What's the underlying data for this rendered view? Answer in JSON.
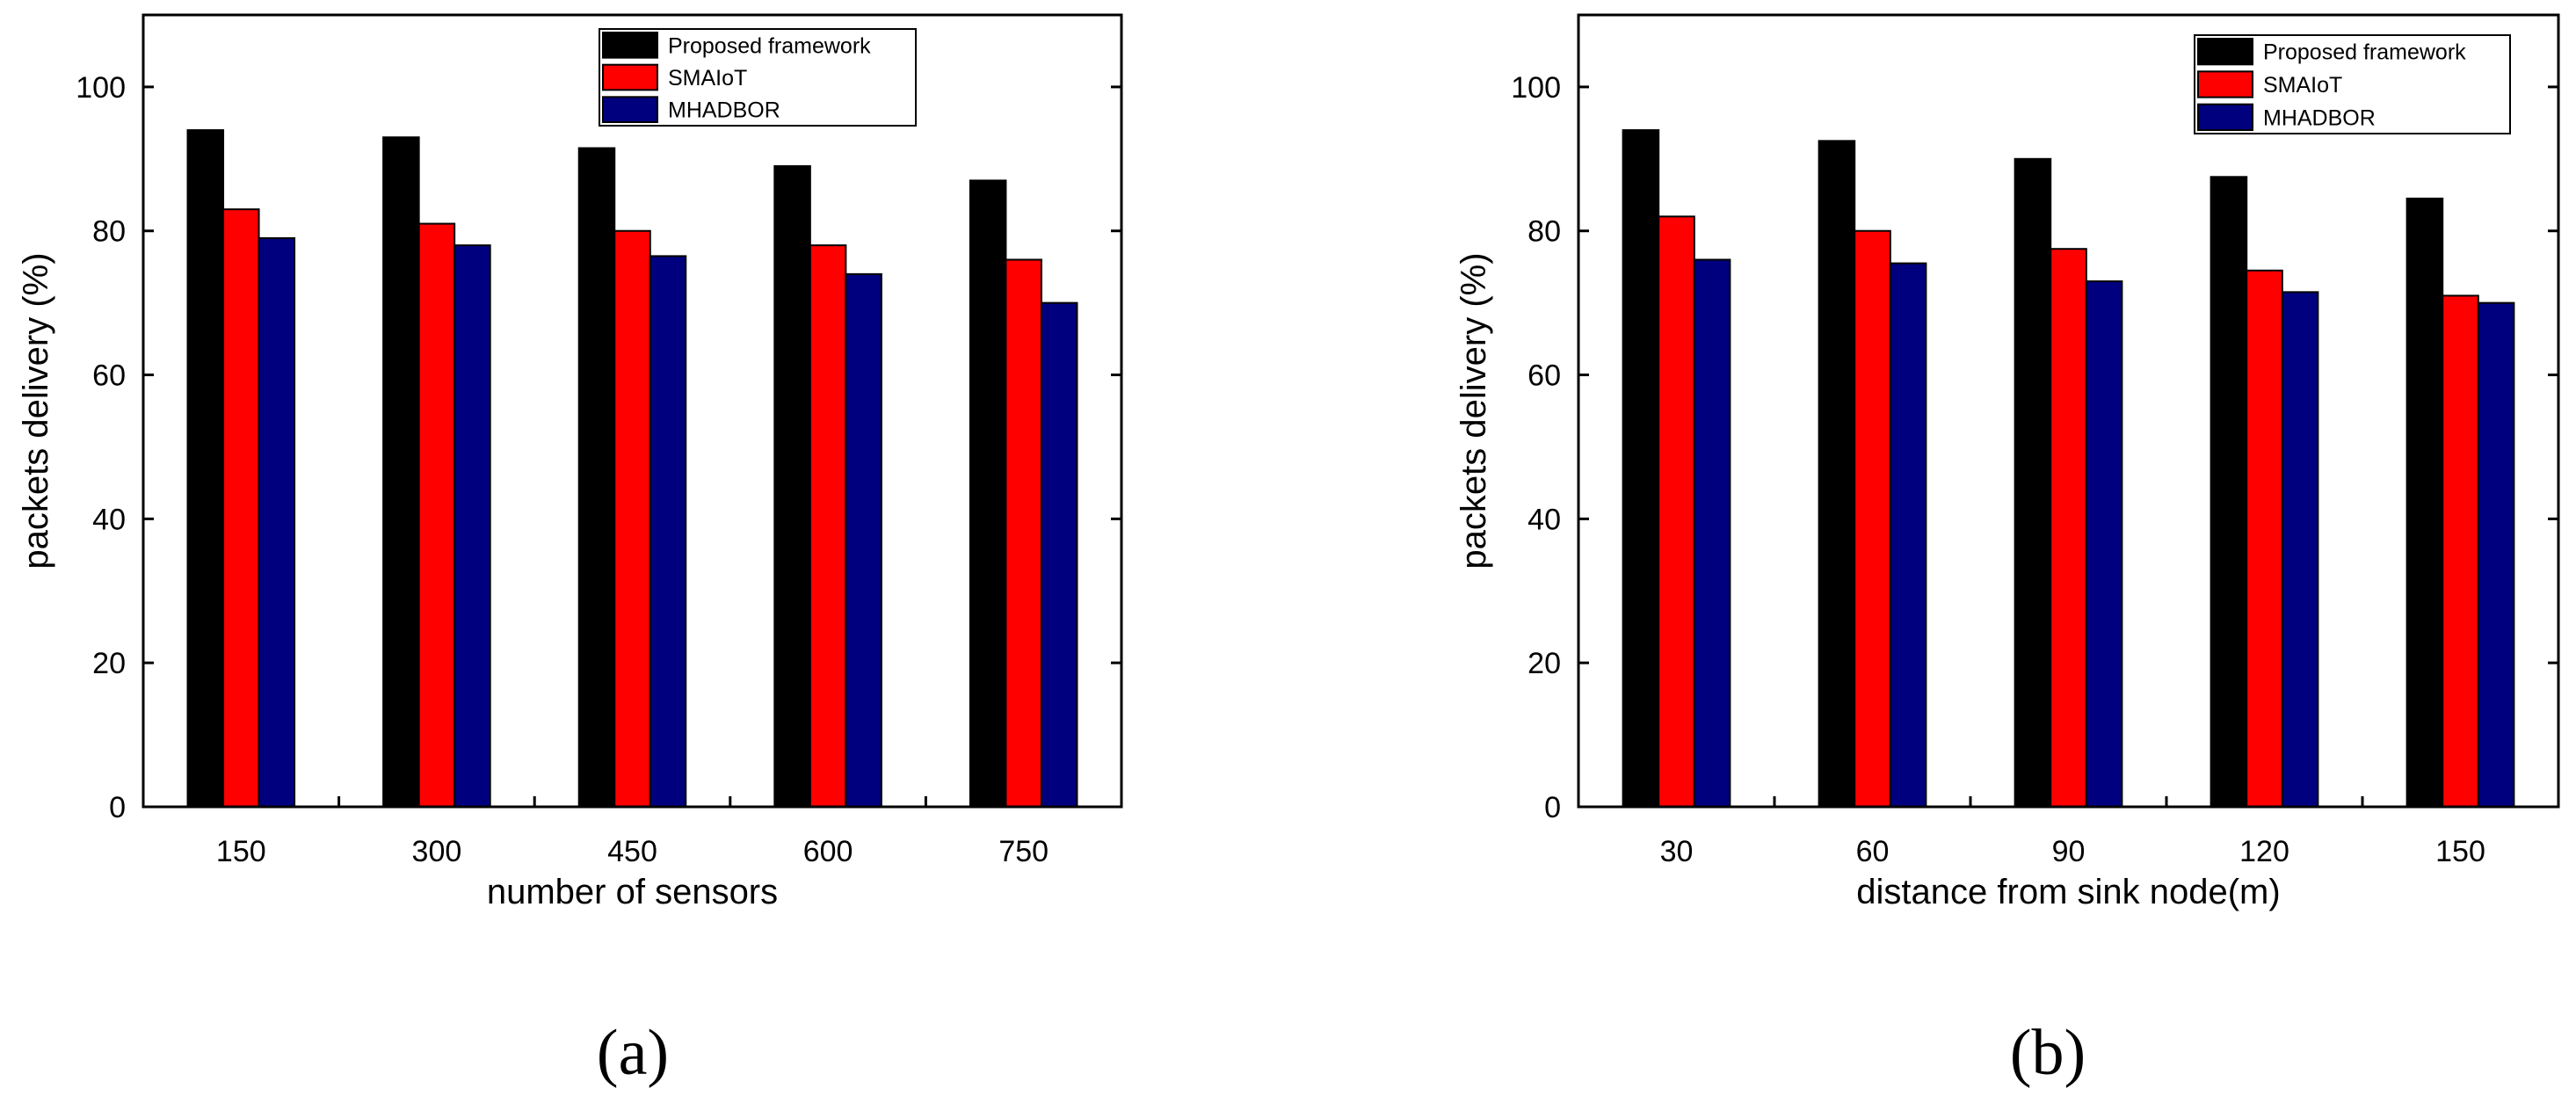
{
  "chart_data": [
    {
      "type": "bar",
      "panel_label": "(a)",
      "xlabel": "number of sensors",
      "ylabel": "packets delivery (%)",
      "categories": [
        "150",
        "300",
        "450",
        "600",
        "750"
      ],
      "ylim": [
        0,
        110
      ],
      "yticks": [
        0,
        20,
        40,
        60,
        80,
        100
      ],
      "series": [
        {
          "name": "Proposed framework",
          "color": "#000000",
          "values": [
            94,
            93,
            91.5,
            89,
            87
          ]
        },
        {
          "name": "SMAIoT",
          "color": "#ff0000",
          "values": [
            83,
            81,
            80,
            78,
            76
          ]
        },
        {
          "name": "MHADBOR",
          "color": "#00007f",
          "values": [
            79,
            78,
            76.5,
            74,
            70
          ]
        }
      ],
      "legend": "top-right"
    },
    {
      "type": "bar",
      "panel_label": "(b)",
      "xlabel": "distance from sink node(m)",
      "ylabel": "packets delivery (%)",
      "categories": [
        "30",
        "60",
        "90",
        "120",
        "150"
      ],
      "ylim": [
        0,
        110
      ],
      "yticks": [
        0,
        20,
        40,
        60,
        80,
        100
      ],
      "series": [
        {
          "name": "Proposed framework",
          "color": "#000000",
          "values": [
            94,
            92.5,
            90,
            87.5,
            84.5
          ]
        },
        {
          "name": "SMAIoT",
          "color": "#ff0000",
          "values": [
            82,
            80,
            77.5,
            74.5,
            71
          ]
        },
        {
          "name": "MHADBOR",
          "color": "#00007f",
          "values": [
            76,
            75.5,
            73,
            71.5,
            70
          ]
        }
      ],
      "legend": "top-right"
    }
  ]
}
